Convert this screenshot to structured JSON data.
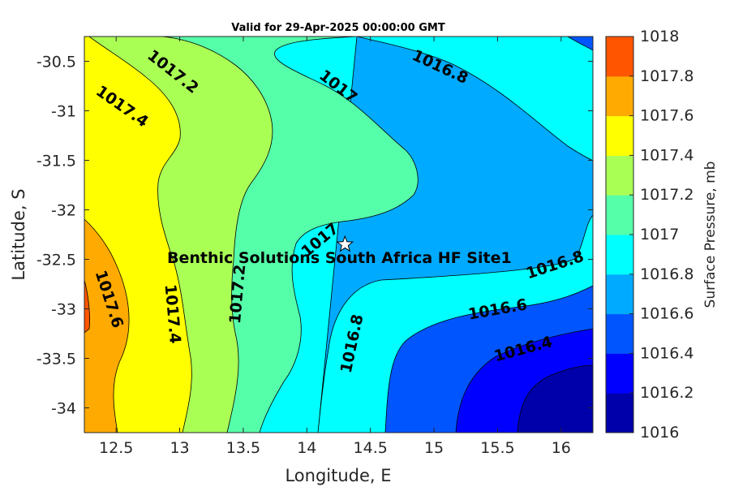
{
  "chart_data": {
    "type": "contour",
    "title": "Valid for 29-Apr-2025 00:00:00 GMT",
    "xlabel": "Longitude, E",
    "ylabel": "Latitude, S",
    "colorbar_label": "Surface Pressure, mb",
    "xlim": [
      12.25,
      16.25
    ],
    "ylim": [
      -34.25,
      -30.25
    ],
    "xticks": [
      12.5,
      13,
      13.5,
      14,
      14.5,
      15,
      15.5,
      16
    ],
    "xtick_labels": [
      "12.5",
      "13",
      "13.5",
      "14",
      "14.5",
      "15",
      "15.5",
      "16"
    ],
    "yticks": [
      -30.5,
      -31,
      -31.5,
      -32,
      -32.5,
      -33,
      -33.5,
      -34
    ],
    "ytick_labels": [
      "-30.5",
      "-31",
      "-31.5",
      "-32",
      "-32.5",
      "-33",
      "-33.5",
      "-34"
    ],
    "levels": [
      1016,
      1016.2,
      1016.4,
      1016.6,
      1016.8,
      1017,
      1017.2,
      1017.4,
      1017.6,
      1017.8,
      1018
    ],
    "colorbar_labels": [
      "1016",
      "1016.2",
      "1016.4",
      "1016.6",
      "1016.8",
      "1017",
      "1017.2",
      "1017.4",
      "1017.6",
      "1017.8",
      "1018"
    ],
    "colors": [
      "#0000aa",
      "#0000ff",
      "#0055ff",
      "#00aaff",
      "#00ffff",
      "#55ffaa",
      "#aaff55",
      "#ffff00",
      "#ffaa00",
      "#ff5500",
      "#ff0000"
    ],
    "contour_labels": [
      {
        "text": "1017.2",
        "lon": 12.95,
        "lat": -30.6
      },
      {
        "text": "1017.4",
        "lon": 12.55,
        "lat": -30.95
      },
      {
        "text": "1017",
        "lon": 14.25,
        "lat": -30.75
      },
      {
        "text": "1016.8",
        "lon": 15.05,
        "lat": -30.55
      },
      {
        "text": "1017",
        "lon": 14.1,
        "lat": -32.3
      },
      {
        "text": "1016.8",
        "lon": 15.95,
        "lat": -32.55
      },
      {
        "text": "1017.6",
        "lon": 12.45,
        "lat": -32.9
      },
      {
        "text": "1017.4",
        "lon": 12.95,
        "lat": -33.05
      },
      {
        "text": "1017.2",
        "lon": 13.45,
        "lat": -32.85
      },
      {
        "text": "1016.8",
        "lon": 14.35,
        "lat": -33.35
      },
      {
        "text": "1016.6",
        "lon": 15.5,
        "lat": -33.0
      },
      {
        "text": "1016.4",
        "lon": 15.7,
        "lat": -33.4
      }
    ],
    "site": {
      "name": "Benthic Solutions South Africa HF Site1",
      "lon": 14.3,
      "lat": -32.35
    }
  }
}
